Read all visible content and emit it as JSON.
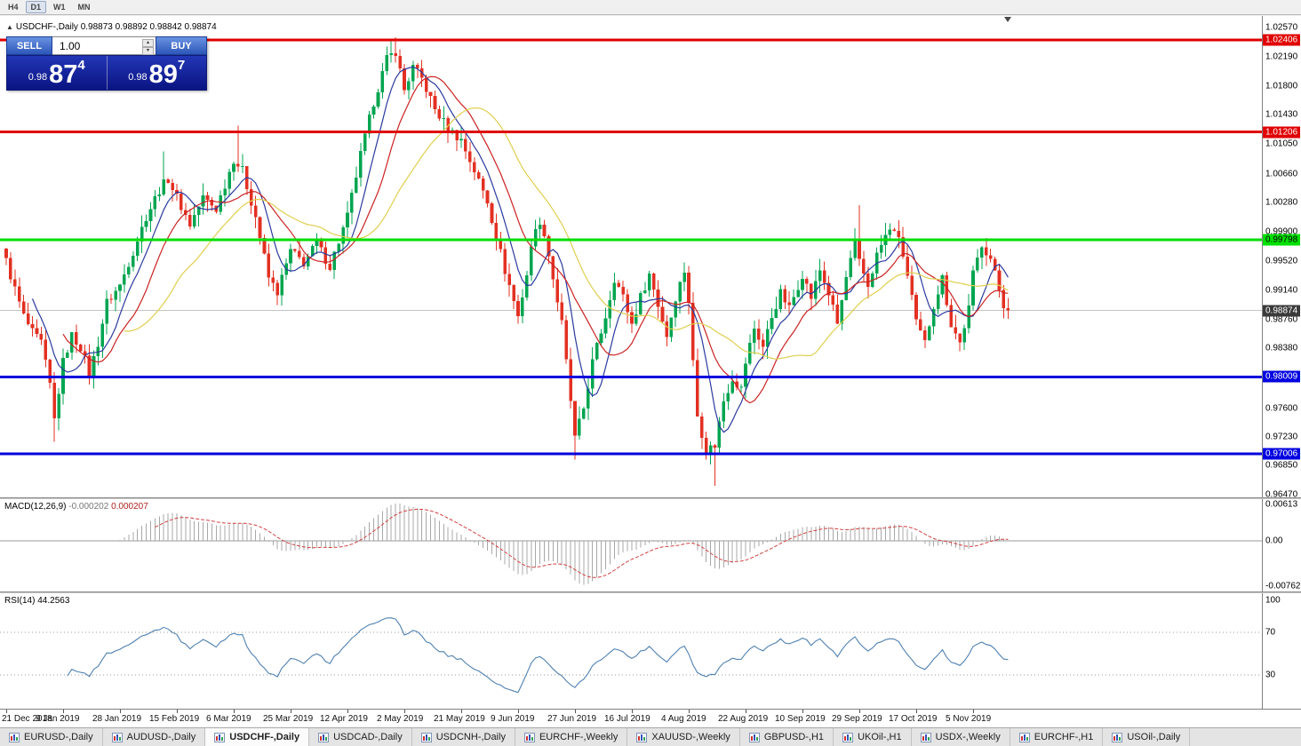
{
  "toolbar": {
    "timeframes": [
      {
        "label": "H4",
        "active": false
      },
      {
        "label": "D1",
        "active": true
      },
      {
        "label": "W1",
        "active": false
      },
      {
        "label": "MN",
        "active": false
      }
    ]
  },
  "chart_header": {
    "collapse_icon": "▲",
    "title": "USDCHF-,Daily",
    "ohlc": "0.98873 0.98892 0.98842 0.98874"
  },
  "one_click": {
    "sell_label": "SELL",
    "buy_label": "BUY",
    "volume": "1.00",
    "spin_up": "▴",
    "spin_down": "▾",
    "bid": {
      "prefix": "0.98",
      "big": "87",
      "pip": "4"
    },
    "ask": {
      "prefix": "0.98",
      "big": "89",
      "pip": "7"
    }
  },
  "price_axis": {
    "ticks": [
      "1.02570",
      "1.02190",
      "1.01800",
      "1.01430",
      "1.01050",
      "1.00660",
      "1.00280",
      "0.99900",
      "0.99520",
      "0.99140",
      "0.98760",
      "0.98380",
      "0.97600",
      "0.97230",
      "0.96850",
      "0.96470"
    ],
    "level_badges": [
      {
        "text": "1.02406",
        "price": 1.02406,
        "bg": "#e00000",
        "fg": "#ffffff"
      },
      {
        "text": "1.01206",
        "price": 1.01206,
        "bg": "#e00000",
        "fg": "#ffffff"
      },
      {
        "text": "0.99798",
        "price": 0.99798,
        "bg": "#00e000",
        "fg": "#000000"
      },
      {
        "text": "0.98009",
        "price": 0.98009,
        "bg": "#0000e0",
        "fg": "#ffffff"
      },
      {
        "text": "0.97006",
        "price": 0.97006,
        "bg": "#0000e0",
        "fg": "#ffffff"
      }
    ],
    "current": {
      "text": "0.98874",
      "price": 0.98874,
      "bg": "#3a3a3a",
      "fg": "#ffffff"
    }
  },
  "indicators": {
    "macd": {
      "name": "MACD(12,26,9)",
      "main_value": "-0.000202",
      "signal_value": "0.000207",
      "axis_labels": [
        {
          "text": "0.00613",
          "value": 0.00613
        },
        {
          "text": "0.00",
          "value": 0
        },
        {
          "text": "-0.00762",
          "value": -0.00762
        }
      ]
    },
    "rsi": {
      "name": "RSI(14)",
      "value": "44.2563",
      "axis_labels": [
        {
          "text": "100",
          "value": 100
        },
        {
          "text": "70",
          "value": 70
        },
        {
          "text": "30",
          "value": 30
        }
      ],
      "levels": [
        70,
        30
      ]
    }
  },
  "time_axis": {
    "labels": [
      {
        "text": "21 Dec 2018",
        "i": 0
      },
      {
        "text": "9 Jan 2019",
        "i": 13
      },
      {
        "text": "28 Jan 2019",
        "i": 26
      },
      {
        "text": "15 Feb 2019",
        "i": 39
      },
      {
        "text": "6 Mar 2019",
        "i": 52
      },
      {
        "text": "25 Mar 2019",
        "i": 65
      },
      {
        "text": "12 Apr 2019",
        "i": 78
      },
      {
        "text": "2 May 2019",
        "i": 91
      },
      {
        "text": "21 May 2019",
        "i": 104
      },
      {
        "text": "9 Jun 2019",
        "i": 117
      },
      {
        "text": "27 Jun 2019",
        "i": 130
      },
      {
        "text": "16 Jul 2019",
        "i": 143
      },
      {
        "text": "4 Aug 2019",
        "i": 156
      },
      {
        "text": "22 Aug 2019",
        "i": 169
      },
      {
        "text": "10 Sep 2019",
        "i": 182
      },
      {
        "text": "29 Sep 2019",
        "i": 195
      },
      {
        "text": "17 Oct 2019",
        "i": 208
      },
      {
        "text": "5 Nov 2019",
        "i": 221
      }
    ]
  },
  "tabs": [
    {
      "label": "EURUSD-,Daily",
      "active": false
    },
    {
      "label": "AUDUSD-,Daily",
      "active": false
    },
    {
      "label": "USDCHF-,Daily",
      "active": true
    },
    {
      "label": "USDCAD-,Daily",
      "active": false
    },
    {
      "label": "USDCNH-,Daily",
      "active": false
    },
    {
      "label": "EURCHF-,Weekly",
      "active": false
    },
    {
      "label": "XAUUSD-,Weekly",
      "active": false
    },
    {
      "label": "GBPUSD-,H1",
      "active": false
    },
    {
      "label": "UKOil-,H1",
      "active": false
    },
    {
      "label": "USDX-,Weekly",
      "active": false
    },
    {
      "label": "EURCHF-,H1",
      "active": false
    },
    {
      "label": "USOil-,Daily",
      "active": false
    }
  ],
  "chart_data": {
    "type": "candlestick",
    "symbol": "USDCHF",
    "timeframe": "Daily",
    "title": "USDCHF-,Daily",
    "ohlc_current": {
      "open": 0.98873,
      "high": 0.98892,
      "low": 0.98842,
      "close": 0.98874
    },
    "bid": 0.98874,
    "ask": 0.98897,
    "candle_count": 230,
    "ylim": [
      0.96437,
      1.02719
    ],
    "horizontal_levels": [
      {
        "price": 1.02406,
        "color": "#e00000",
        "width": 3
      },
      {
        "price": 1.01206,
        "color": "#e00000",
        "width": 3
      },
      {
        "price": 0.99798,
        "color": "#00dd00",
        "width": 3
      },
      {
        "price": 0.98009,
        "color": "#0000dd",
        "width": 3
      },
      {
        "price": 0.97006,
        "color": "#0000dd",
        "width": 3
      }
    ],
    "current_price_line": 0.98874,
    "moving_averages": [
      {
        "period": 7,
        "color": "#2a3a9e"
      },
      {
        "period": 14,
        "color": "#cc2222"
      },
      {
        "period": 28,
        "color": "#e0cf4e"
      }
    ],
    "candle_colors": {
      "up": "#00a550",
      "down": "#e33022"
    },
    "price_anchors": [
      [
        0,
        0.9952
      ],
      [
        2,
        0.9915
      ],
      [
        4,
        0.988
      ],
      [
        6,
        0.9858
      ],
      [
        8,
        0.9845
      ],
      [
        10,
        0.979
      ],
      [
        11,
        0.9745
      ],
      [
        13,
        0.982
      ],
      [
        15,
        0.9855
      ],
      [
        17,
        0.984
      ],
      [
        19,
        0.9805
      ],
      [
        21,
        0.9845
      ],
      [
        23,
        0.9898
      ],
      [
        26,
        0.992
      ],
      [
        29,
        0.9965
      ],
      [
        32,
        1.001
      ],
      [
        35,
        1.0045
      ],
      [
        37,
        1.006
      ],
      [
        39,
        1.0035
      ],
      [
        42,
        1.0
      ],
      [
        45,
        1.0035
      ],
      [
        48,
        1.002
      ],
      [
        52,
        1.0085
      ],
      [
        54,
        1.007
      ],
      [
        57,
        1.001
      ],
      [
        60,
        0.993
      ],
      [
        62,
        0.9912
      ],
      [
        65,
        0.9965
      ],
      [
        68,
        0.995
      ],
      [
        71,
        0.9975
      ],
      [
        74,
        0.9945
      ],
      [
        78,
        1.001
      ],
      [
        81,
        1.009
      ],
      [
        84,
        1.016
      ],
      [
        87,
        1.0215
      ],
      [
        89,
        1.0226
      ],
      [
        91,
        1.0175
      ],
      [
        93,
        1.0205
      ],
      [
        95,
        1.019
      ],
      [
        98,
        1.015
      ],
      [
        101,
        1.0125
      ],
      [
        104,
        1.011
      ],
      [
        107,
        1.007
      ],
      [
        110,
        1.003
      ],
      [
        112,
        0.9985
      ],
      [
        114,
        0.994
      ],
      [
        117,
        0.988
      ],
      [
        119,
        0.9935
      ],
      [
        121,
        1.0
      ],
      [
        123,
        0.999
      ],
      [
        125,
        0.993
      ],
      [
        127,
        0.987
      ],
      [
        129,
        0.977
      ],
      [
        130,
        0.972
      ],
      [
        132,
        0.976
      ],
      [
        134,
        0.982
      ],
      [
        137,
        0.988
      ],
      [
        139,
        0.993
      ],
      [
        141,
        0.9905
      ],
      [
        143,
        0.987
      ],
      [
        145,
        0.9905
      ],
      [
        147,
        0.9935
      ],
      [
        149,
        0.9895
      ],
      [
        151,
        0.9855
      ],
      [
        153,
        0.9905
      ],
      [
        155,
        0.994
      ],
      [
        156,
        0.99
      ],
      [
        157,
        0.982
      ],
      [
        158,
        0.975
      ],
      [
        160,
        0.9705
      ],
      [
        162,
        0.9712
      ],
      [
        164,
        0.977
      ],
      [
        166,
        0.98
      ],
      [
        168,
        0.9785
      ],
      [
        169,
        0.982
      ],
      [
        171,
        0.9865
      ],
      [
        173,
        0.984
      ],
      [
        175,
        0.988
      ],
      [
        177,
        0.991
      ],
      [
        179,
        0.989
      ],
      [
        181,
        0.992
      ],
      [
        182,
        0.9935
      ],
      [
        184,
        0.9905
      ],
      [
        186,
        0.994
      ],
      [
        188,
        0.991
      ],
      [
        190,
        0.987
      ],
      [
        192,
        0.993
      ],
      [
        194,
        0.9975
      ],
      [
        195,
        0.995
      ],
      [
        197,
        0.992
      ],
      [
        199,
        0.996
      ],
      [
        201,
        0.9985
      ],
      [
        203,
        0.9995
      ],
      [
        205,
        0.996
      ],
      [
        207,
        0.9905
      ],
      [
        208,
        0.987
      ],
      [
        210,
        0.9845
      ],
      [
        212,
        0.9895
      ],
      [
        214,
        0.993
      ],
      [
        216,
        0.987
      ],
      [
        218,
        0.9845
      ],
      [
        220,
        0.989
      ],
      [
        221,
        0.9935
      ],
      [
        223,
        0.9975
      ],
      [
        225,
        0.9955
      ],
      [
        227,
        0.9915
      ],
      [
        228,
        0.9895
      ],
      [
        229,
        0.98874
      ]
    ],
    "wick_overrides": {
      "11": [
        null,
        0.9716
      ],
      "36": [
        1.0095,
        null
      ],
      "53": [
        1.0129,
        null
      ],
      "89": [
        1.0244,
        null
      ],
      "130": [
        null,
        0.9693
      ],
      "162": [
        null,
        0.9659
      ],
      "195": [
        1.0025,
        null
      ],
      "224": [
        0.9982,
        null
      ]
    },
    "macd_range": [
      -0.0085,
      0.007
    ],
    "macd_bar_color": "#a8a8a8",
    "macd_signal_color": "#d04040",
    "rsi_color": "#4f81b1"
  }
}
